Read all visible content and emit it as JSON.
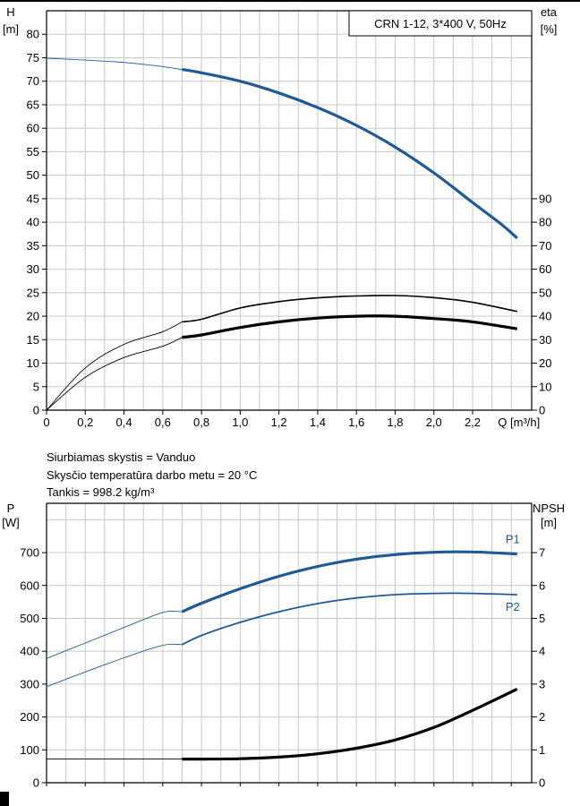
{
  "colors": {
    "blue": "#1f5a96",
    "black": "#000000",
    "grid": "#c8c8c8"
  },
  "fluid_info": [
    "Siurbiamas skystis = Vanduo",
    "Skysčio temperatūra darbo metu = 20 °C",
    "Tankis = 998.2 kg/m³"
  ],
  "chart_data": [
    {
      "type": "line",
      "legend_box": "CRN 1-12, 3*400 V, 50Hz",
      "xlabel": "Q [m³/h]",
      "x_ticks": [
        "0",
        "0,2",
        "0,4",
        "0,6",
        "0,8",
        "1,0",
        "1,2",
        "1,4",
        "1,6",
        "1,8",
        "2,0",
        "2,2"
      ],
      "x_tick_values": [
        0,
        0.2,
        0.4,
        0.6,
        0.8,
        1.0,
        1.2,
        1.4,
        1.6,
        1.8,
        2.0,
        2.2
      ],
      "xlim": [
        0,
        2.5
      ],
      "y_left": {
        "label_line1": "H",
        "label_line2": "[m]",
        "ylim": [
          0,
          85
        ],
        "ticks": [
          "0",
          "5",
          "10",
          "15",
          "20",
          "25",
          "30",
          "35",
          "40",
          "45",
          "50",
          "55",
          "60",
          "65",
          "70",
          "75",
          "80"
        ]
      },
      "y_right": {
        "label_line1": "eta",
        "label_line2": "[%]",
        "ylim": [
          0,
          170
        ],
        "ticks": [
          "0",
          "10",
          "20",
          "30",
          "40",
          "50",
          "60",
          "70",
          "80",
          "90"
        ]
      },
      "series": [
        {
          "axis": "left",
          "color": "blue",
          "op_start": 0.7,
          "x": [
            0,
            0.2,
            0.4,
            0.6,
            0.7,
            0.8,
            1.0,
            1.2,
            1.4,
            1.6,
            1.8,
            2.0,
            2.2,
            2.35,
            2.43
          ],
          "y": [
            74.9,
            74.5,
            74.0,
            73.1,
            72.5,
            71.8,
            70.0,
            67.5,
            64.4,
            60.6,
            56.0,
            50.5,
            44.2,
            39.5,
            36.6
          ]
        },
        {
          "axis": "right",
          "color": "black",
          "op_start": 0.7,
          "width": "thin",
          "x": [
            0,
            0.2,
            0.4,
            0.6,
            0.7,
            0.8,
            1.0,
            1.2,
            1.4,
            1.6,
            1.8,
            2.0,
            2.2,
            2.43
          ],
          "y": [
            0,
            18,
            28,
            33.4,
            37.6,
            38.7,
            43.5,
            46.2,
            47.8,
            48.6,
            48.8,
            47.9,
            45.9,
            42
          ]
        },
        {
          "axis": "right",
          "color": "black",
          "op_start": 0.7,
          "width": "thick",
          "x": [
            0,
            0.2,
            0.4,
            0.6,
            0.7,
            0.8,
            1.0,
            1.2,
            1.4,
            1.6,
            1.8,
            2.0,
            2.2,
            2.43
          ],
          "y": [
            0,
            14,
            22.4,
            27.2,
            31.0,
            32.0,
            35.2,
            37.6,
            39.2,
            40.0,
            40.0,
            39.0,
            37.6,
            34.6
          ]
        }
      ]
    },
    {
      "type": "line",
      "xlim": [
        0,
        2.5
      ],
      "y_left": {
        "label_line1": "P",
        "label_line2": "[W]",
        "ylim": [
          0,
          850
        ],
        "ticks": [
          "0",
          "100",
          "200",
          "300",
          "400",
          "500",
          "600",
          "700"
        ]
      },
      "y_right": {
        "label_line1": "NPSH",
        "label_line2": "[m]",
        "ylim": [
          0,
          8.5
        ],
        "ticks": [
          "0",
          "1",
          "2",
          "3",
          "4",
          "5",
          "6",
          "7"
        ]
      },
      "series": [
        {
          "name": "P1",
          "axis": "left",
          "color": "blue",
          "op_start": 0.7,
          "width": "thick",
          "x": [
            0,
            0.2,
            0.4,
            0.6,
            0.7,
            0.8,
            1.0,
            1.2,
            1.4,
            1.6,
            1.8,
            2.0,
            2.2,
            2.43
          ],
          "y": [
            378,
            425,
            472,
            518,
            520,
            546,
            590,
            628,
            658,
            680,
            694,
            701,
            702,
            696
          ]
        },
        {
          "name": "P2",
          "axis": "left",
          "color": "blue",
          "op_start": 0.7,
          "width": "normal",
          "x": [
            0,
            0.2,
            0.4,
            0.6,
            0.7,
            0.8,
            1.0,
            1.2,
            1.4,
            1.6,
            1.8,
            2.0,
            2.2,
            2.43
          ],
          "y": [
            292,
            337,
            380,
            418,
            420,
            448,
            488,
            520,
            545,
            562,
            572,
            576,
            576,
            572
          ]
        },
        {
          "axis": "right",
          "color": "black",
          "op_start": 0.7,
          "width": "thick",
          "x": [
            0,
            0.2,
            0.4,
            0.6,
            0.7,
            0.8,
            1.0,
            1.2,
            1.4,
            1.6,
            1.8,
            2.0,
            2.2,
            2.43
          ],
          "y": [
            0.72,
            0.72,
            0.72,
            0.72,
            0.72,
            0.72,
            0.73,
            0.78,
            0.88,
            1.05,
            1.3,
            1.68,
            2.2,
            2.85
          ]
        }
      ]
    }
  ]
}
